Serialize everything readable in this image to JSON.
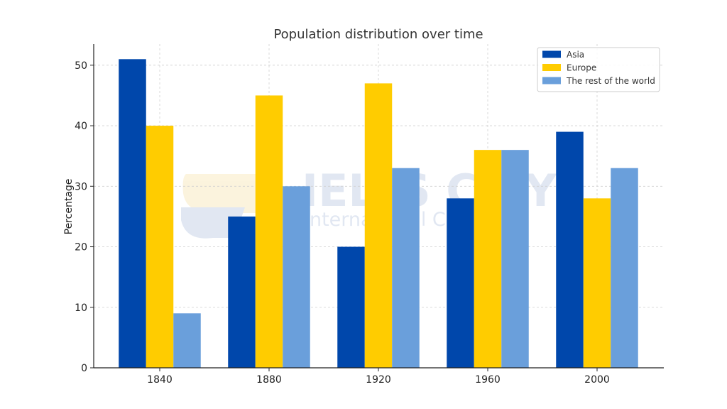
{
  "watermark": {
    "brand": "IELTS CITY",
    "tagline": "International Clever"
  },
  "chart_data": {
    "type": "bar",
    "title": "Population distribution over time",
    "xlabel": "",
    "ylabel": "Percentage",
    "categories": [
      "1840",
      "1880",
      "1920",
      "1960",
      "2000"
    ],
    "series": [
      {
        "name": "Asia",
        "color": "#0047ab",
        "values": [
          51,
          25,
          20,
          28,
          39
        ]
      },
      {
        "name": "Europe",
        "color": "#ffcc00",
        "values": [
          40,
          45,
          47,
          36,
          28
        ]
      },
      {
        "name": "The rest of the world",
        "color": "#6a9fdb",
        "values": [
          9,
          30,
          33,
          36,
          33
        ]
      }
    ],
    "ylim": [
      0,
      53.5
    ],
    "yticks": [
      0,
      10,
      20,
      30,
      40,
      50
    ],
    "grid": true,
    "legend_position": "top-right"
  }
}
